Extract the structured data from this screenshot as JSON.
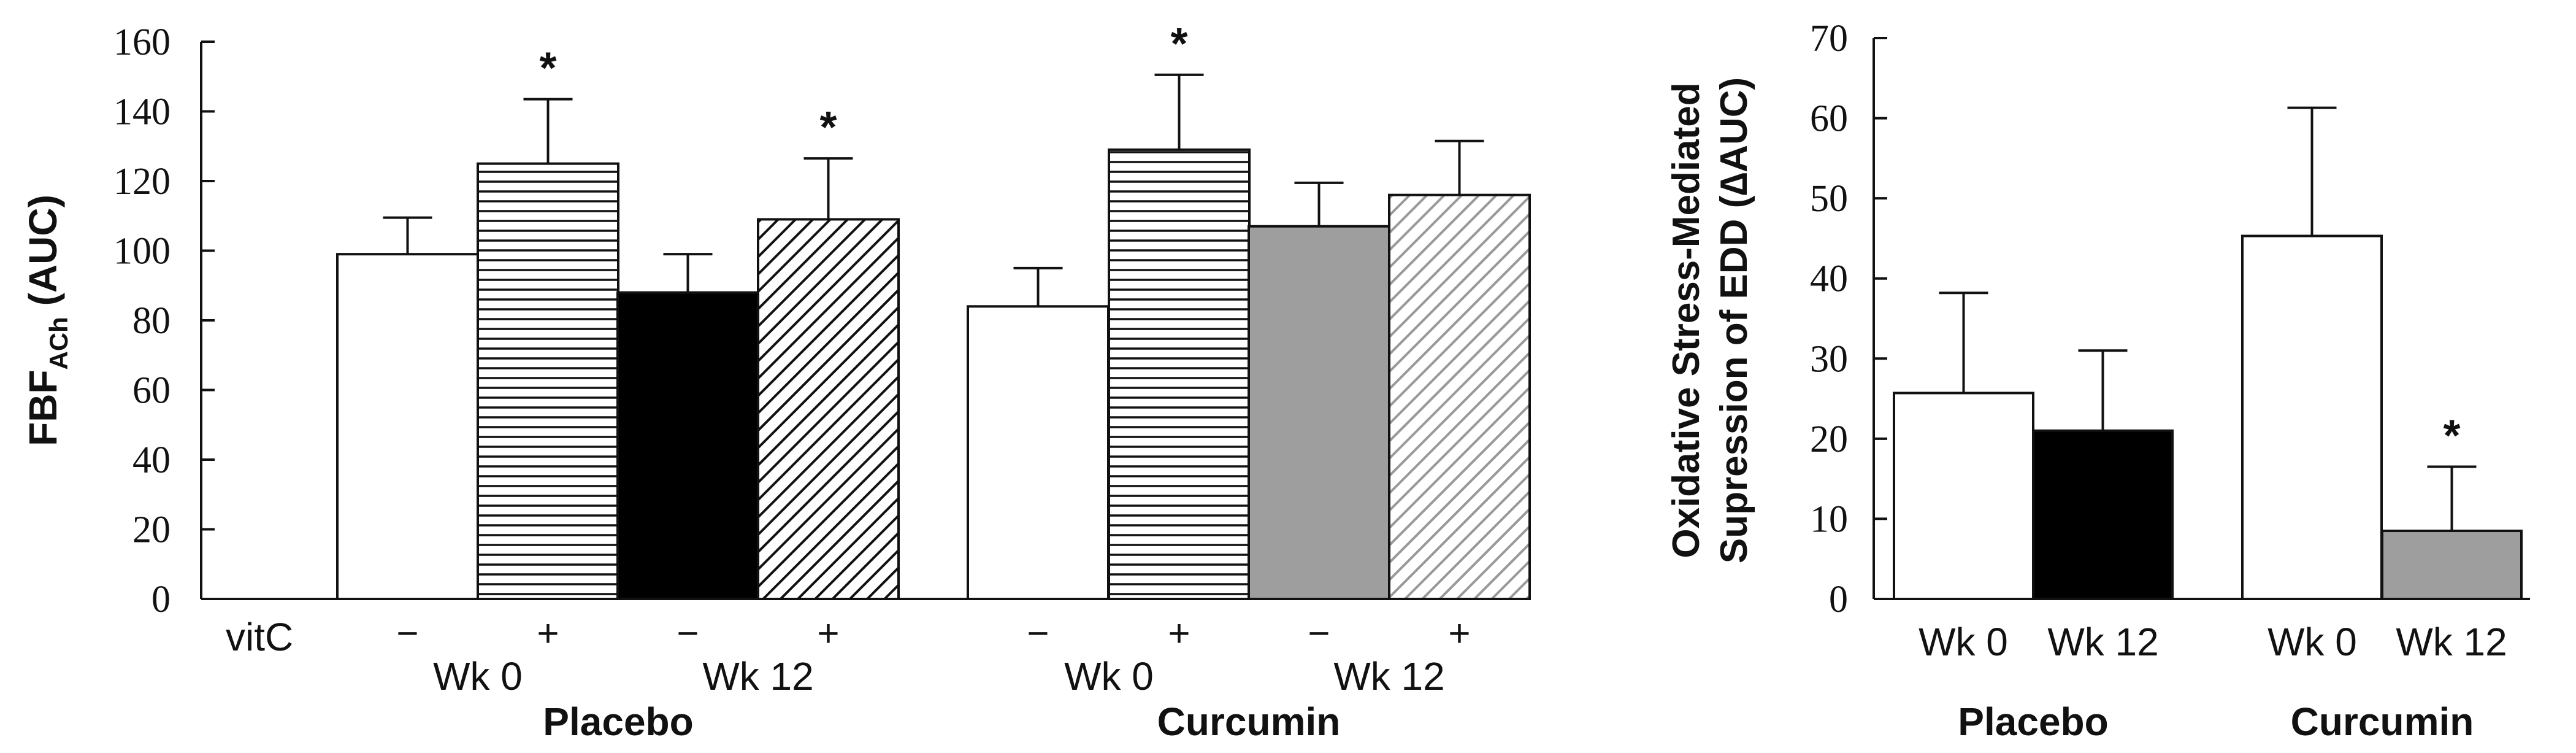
{
  "chart_data": [
    {
      "type": "bar",
      "ylabel": "FBF",
      "ylabel_sub": "ACh",
      "ylabel_suffix": " (AUC)",
      "ylim": [
        0,
        160
      ],
      "yticks": [
        "0",
        "20",
        "40",
        "60",
        "80",
        "100",
        "120",
        "140",
        "160"
      ],
      "row_label": "vitC",
      "bars": [
        {
          "group": "Placebo",
          "time": "Wk 0",
          "vitc": "−",
          "value": 99,
          "error": 10.5,
          "fill": "white",
          "star": ""
        },
        {
          "group": "Placebo",
          "time": "Wk 0",
          "vitc": "+",
          "value": 125,
          "error": 18.5,
          "fill": "hlines",
          "star": "*"
        },
        {
          "group": "Placebo",
          "time": "Wk 12",
          "vitc": "−",
          "value": 88,
          "error": 11,
          "fill": "black",
          "star": ""
        },
        {
          "group": "Placebo",
          "time": "Wk 12",
          "vitc": "+",
          "value": 109,
          "error": 17.5,
          "fill": "diag-black",
          "star": "*"
        },
        {
          "group": "Curcumin",
          "time": "Wk 0",
          "vitc": "−",
          "value": 84,
          "error": 11,
          "fill": "white",
          "star": ""
        },
        {
          "group": "Curcumin",
          "time": "Wk 0",
          "vitc": "+",
          "value": 129,
          "error": 21.5,
          "fill": "hlines",
          "star": "*"
        },
        {
          "group": "Curcumin",
          "time": "Wk 12",
          "vitc": "−",
          "value": 107,
          "error": 12.5,
          "fill": "gray",
          "star": ""
        },
        {
          "group": "Curcumin",
          "time": "Wk 12",
          "vitc": "+",
          "value": 116,
          "error": 15.5,
          "fill": "diag-gray",
          "star": ""
        }
      ],
      "time_labels": [
        "Wk 0",
        "Wk 12",
        "Wk 0",
        "Wk 12"
      ],
      "group_labels": [
        "Placebo",
        "Curcumin"
      ]
    },
    {
      "type": "bar",
      "ylabel_lines": [
        "Oxidative Stress-Mediated",
        "Supression of EDD (∆AUC)"
      ],
      "ylim": [
        0,
        70
      ],
      "yticks": [
        "0",
        "10",
        "20",
        "30",
        "40",
        "50",
        "60",
        "70"
      ],
      "bars": [
        {
          "group": "Placebo",
          "time": "Wk 0",
          "value": 25.7,
          "error": 12.5,
          "fill": "white",
          "star": ""
        },
        {
          "group": "Placebo",
          "time": "Wk 12",
          "value": 21,
          "error": 10,
          "fill": "black",
          "star": ""
        },
        {
          "group": "Curcumin",
          "time": "Wk 0",
          "value": 45.3,
          "error": 16,
          "fill": "white",
          "star": ""
        },
        {
          "group": "Curcumin",
          "time": "Wk 12",
          "value": 8.5,
          "error": 8,
          "fill": "gray",
          "star": "*"
        }
      ],
      "time_labels": [
        "Wk 0",
        "Wk 12",
        "Wk 0",
        "Wk 12"
      ],
      "group_labels": [
        "Placebo",
        "Curcumin"
      ]
    }
  ]
}
